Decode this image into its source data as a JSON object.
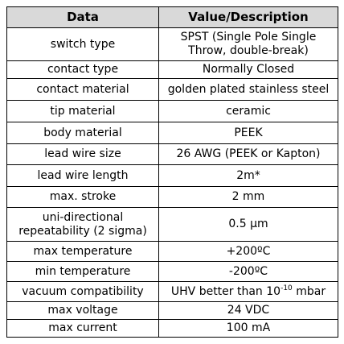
{
  "table": {
    "header": [
      "Data",
      "Value/Description"
    ],
    "rows": [
      [
        "switch type",
        "SPST (Single Pole Single Throw, double-break)"
      ],
      [
        "contact type",
        "Normally Closed"
      ],
      [
        "contact material",
        "golden plated stainless steel"
      ],
      [
        "tip material",
        "ceramic"
      ],
      [
        "body material",
        "PEEK"
      ],
      [
        "lead wire size",
        "26 AWG (PEEK or Kapton)"
      ],
      [
        "lead wire length",
        "2m*"
      ],
      [
        "max. stroke",
        "2 mm"
      ],
      [
        "uni-directional repeatability (2 sigma)",
        "0.5 µm"
      ],
      [
        "max temperature",
        "+200ºC"
      ],
      [
        "min temperature",
        "-200ºC"
      ],
      [
        "vacuum compatibility",
        {
          "text": "UHV better than 10",
          "superscript": "-10",
          "unit": "mbar"
        }
      ],
      [
        "max voltage",
        "24 VDC"
      ],
      [
        "max current",
        "100 mA"
      ]
    ]
  }
}
